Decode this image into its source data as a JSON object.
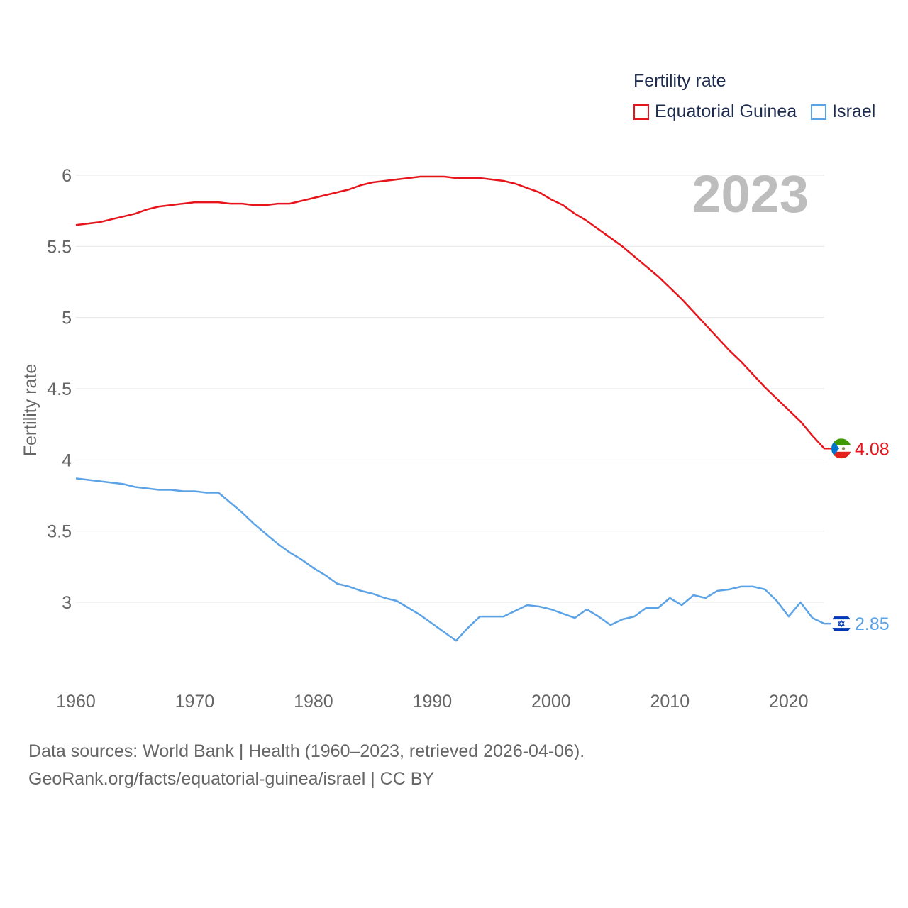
{
  "legend": {
    "title": "Fertility rate",
    "items": [
      {
        "name": "Equatorial Guinea",
        "color": "#e8141b"
      },
      {
        "name": "Israel",
        "color": "#5ba3e6"
      }
    ]
  },
  "year_label": "2023",
  "footer": {
    "line1": "Data sources: World Bank | Health (1960–2023, retrieved 2026-04-06).",
    "line2": "GeoRank.org/facts/equatorial-guinea/israel | CC BY"
  },
  "chart_data": {
    "type": "line",
    "title": "Fertility rate",
    "xlabel": "",
    "ylabel": "Fertility rate",
    "xlim": [
      1960,
      2023
    ],
    "ylim": [
      2.5,
      6.15
    ],
    "x_ticks": [
      1960,
      1970,
      1980,
      1990,
      2000,
      2010,
      2020
    ],
    "y_ticks": [
      3,
      3.5,
      4,
      4.5,
      5,
      5.5,
      6
    ],
    "y_tick_labels": [
      "3",
      "3.5",
      "4",
      "4.5",
      "5",
      "5.5",
      "6"
    ],
    "x": [
      1960,
      1961,
      1962,
      1963,
      1964,
      1965,
      1966,
      1967,
      1968,
      1969,
      1970,
      1971,
      1972,
      1973,
      1974,
      1975,
      1976,
      1977,
      1978,
      1979,
      1980,
      1981,
      1982,
      1983,
      1984,
      1985,
      1986,
      1987,
      1988,
      1989,
      1990,
      1991,
      1992,
      1993,
      1994,
      1995,
      1996,
      1997,
      1998,
      1999,
      2000,
      2001,
      2002,
      2003,
      2004,
      2005,
      2006,
      2007,
      2008,
      2009,
      2010,
      2011,
      2012,
      2013,
      2014,
      2015,
      2016,
      2017,
      2018,
      2019,
      2020,
      2021,
      2022,
      2023
    ],
    "series": [
      {
        "name": "Equatorial Guinea",
        "color": "#e8141b",
        "end_label": "4.08",
        "values": [
          5.65,
          5.66,
          5.67,
          5.69,
          5.71,
          5.73,
          5.76,
          5.78,
          5.79,
          5.8,
          5.81,
          5.81,
          5.81,
          5.8,
          5.8,
          5.79,
          5.79,
          5.8,
          5.8,
          5.82,
          5.84,
          5.86,
          5.88,
          5.9,
          5.93,
          5.95,
          5.96,
          5.97,
          5.98,
          5.99,
          5.99,
          5.99,
          5.98,
          5.98,
          5.98,
          5.97,
          5.96,
          5.94,
          5.91,
          5.88,
          5.83,
          5.79,
          5.73,
          5.68,
          5.62,
          5.56,
          5.5,
          5.43,
          5.36,
          5.29,
          5.21,
          5.13,
          5.04,
          4.95,
          4.86,
          4.77,
          4.69,
          4.6,
          4.51,
          4.43,
          4.35,
          4.27,
          4.17,
          4.08
        ]
      },
      {
        "name": "Israel",
        "color": "#5ba3e6",
        "end_label": "2.85",
        "values": [
          3.87,
          3.86,
          3.85,
          3.84,
          3.83,
          3.81,
          3.8,
          3.79,
          3.79,
          3.78,
          3.78,
          3.77,
          3.77,
          3.7,
          3.63,
          3.55,
          3.48,
          3.41,
          3.35,
          3.3,
          3.24,
          3.19,
          3.13,
          3.11,
          3.08,
          3.06,
          3.03,
          3.01,
          2.96,
          2.91,
          2.85,
          2.79,
          2.73,
          2.82,
          2.9,
          2.9,
          2.9,
          2.94,
          2.98,
          2.97,
          2.95,
          2.92,
          2.89,
          2.95,
          2.9,
          2.84,
          2.88,
          2.9,
          2.96,
          2.96,
          3.03,
          2.98,
          3.05,
          3.03,
          3.08,
          3.09,
          3.11,
          3.11,
          3.09,
          3.01,
          2.9,
          3.0,
          2.89,
          2.85
        ]
      }
    ]
  }
}
